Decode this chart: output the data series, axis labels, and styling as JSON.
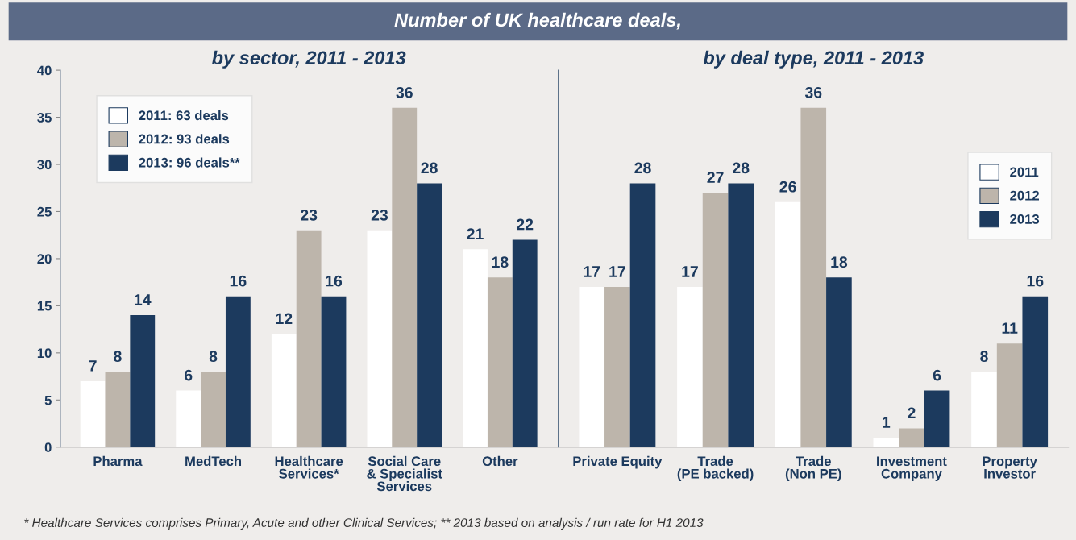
{
  "chart_data": [
    {
      "type": "bar",
      "title": "Number of UK healthcare deals,",
      "subtitle": "by sector, 2011 - 2013",
      "categories": [
        "Pharma",
        "MedTech",
        "Healthcare\nServices*",
        "Social Care\n& Specialist\nServices",
        "Other"
      ],
      "series": [
        {
          "name": "2011: 63 deals",
          "color": "#ffffff",
          "values": [
            7,
            6,
            12,
            23,
            21
          ]
        },
        {
          "name": "2012: 93 deals",
          "color": "#bdb5ab",
          "values": [
            8,
            8,
            23,
            36,
            18
          ]
        },
        {
          "name": "2013: 96 deals**",
          "color": "#1c3a5e",
          "values": [
            14,
            16,
            16,
            28,
            22
          ]
        }
      ],
      "ylim": [
        0,
        40
      ],
      "yticks": [
        0,
        5,
        10,
        15,
        20,
        25,
        30,
        35,
        40
      ],
      "data_labels": true,
      "legend": "top left",
      "grid": false,
      "annotations": [
        "* Healthcare Services comprises Primary, Acute and other Clinical Services; ** 2013 based on analysis / run rate for H1 2013"
      ]
    },
    {
      "type": "bar",
      "subtitle": "by deal type, 2011 - 2013",
      "categories": [
        "Private Equity",
        "Trade\n(PE backed)",
        "Trade\n(Non PE)",
        "Investment\nCompany",
        "Property\nInvestor"
      ],
      "series": [
        {
          "name": "2011",
          "color": "#ffffff",
          "values": [
            17,
            17,
            26,
            1,
            8
          ]
        },
        {
          "name": "2012",
          "color": "#bdb5ab",
          "values": [
            17,
            27,
            36,
            2,
            11
          ]
        },
        {
          "name": "2013",
          "color": "#1c3a5e",
          "values": [
            28,
            28,
            18,
            6,
            16
          ]
        }
      ],
      "ylim": [
        0,
        40
      ],
      "yticks": [
        0,
        5,
        10,
        15,
        20,
        25,
        30,
        35,
        40
      ],
      "tick_labels": "x",
      "data_labels": true,
      "legend": "top right",
      "grid": false
    }
  ]
}
